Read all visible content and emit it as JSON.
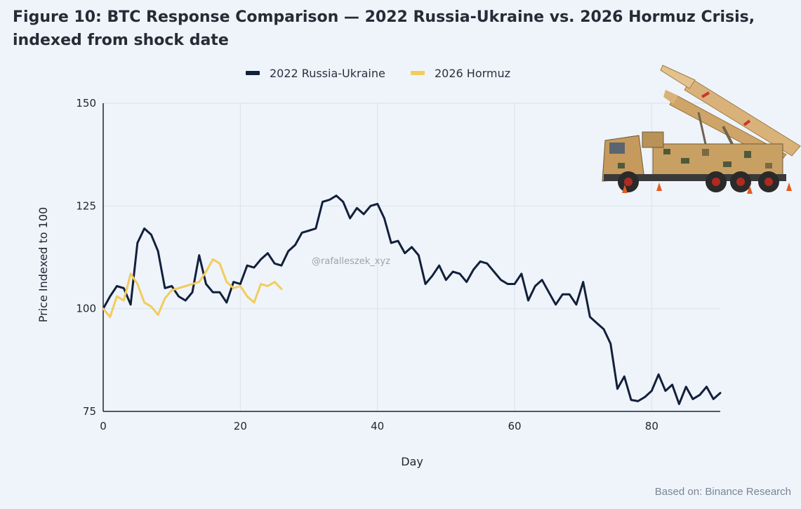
{
  "title_line1": "Figure 10: BTC Response Comparison — 2022 Russia-Ukraine vs. 2026 Hormuz Crisis,",
  "title_line2": "indexed from shock date",
  "watermark": "@rafalleszek_xyz",
  "source": "Based on: Binance Research",
  "illustration_icon": "missile-launcher-truck-icon",
  "chart_data": {
    "type": "line",
    "xlabel": "Day",
    "ylabel": "Price Indexed to 100",
    "xlim": [
      0,
      90
    ],
    "ylim": [
      75,
      150
    ],
    "xticks": [
      0,
      20,
      40,
      60,
      80
    ],
    "yticks": [
      75,
      100,
      125,
      150
    ],
    "grid": true,
    "legend_position": "top-center",
    "series": [
      {
        "name": "2022 Russia-Ukraine",
        "color": "#13203b",
        "x": [
          0,
          1,
          2,
          3,
          4,
          5,
          6,
          7,
          8,
          9,
          10,
          11,
          12,
          13,
          14,
          15,
          16,
          17,
          18,
          19,
          20,
          21,
          22,
          23,
          24,
          25,
          26,
          27,
          28,
          29,
          30,
          31,
          32,
          33,
          34,
          35,
          36,
          37,
          38,
          39,
          40,
          41,
          42,
          43,
          44,
          45,
          46,
          47,
          48,
          49,
          50,
          51,
          52,
          53,
          54,
          55,
          56,
          57,
          58,
          59,
          60,
          61,
          62,
          63,
          64,
          65,
          66,
          67,
          68,
          69,
          70,
          71,
          72,
          73,
          74,
          75,
          76,
          77,
          78,
          79,
          80,
          81,
          82,
          83,
          84,
          85,
          86,
          87,
          88,
          89,
          90
        ],
        "y": [
          100,
          103,
          105.5,
          105,
          101,
          116,
          119.5,
          118,
          114,
          105,
          105.5,
          103,
          102,
          104,
          113,
          106,
          104,
          104,
          101.5,
          106.5,
          106,
          110.5,
          110,
          112,
          113.5,
          111,
          110.5,
          114,
          115.5,
          118.5,
          119,
          119.5,
          126,
          126.5,
          127.5,
          126,
          122,
          124.5,
          123,
          125,
          125.5,
          122,
          116,
          116.5,
          113.5,
          115,
          113,
          106,
          108,
          110.5,
          107,
          109,
          108.5,
          106.5,
          109.5,
          111.5,
          111,
          109,
          107,
          106,
          106,
          108.5,
          102,
          105.5,
          107,
          104,
          101,
          103.5,
          103.5,
          101,
          106.5,
          98,
          96.5,
          95,
          91.5,
          80.5,
          83.5,
          77.8,
          77.5,
          78.5,
          80,
          84,
          80,
          81.5,
          76.8,
          81,
          78,
          79,
          81,
          78,
          79.5
        ]
      },
      {
        "name": "2026 Hormuz",
        "color": "#f2cc5c",
        "x": [
          0,
          1,
          2,
          3,
          4,
          5,
          6,
          7,
          8,
          9,
          10,
          11,
          12,
          13,
          14,
          15,
          16,
          17,
          18,
          19,
          20,
          21,
          22,
          23,
          24,
          25,
          26
        ],
        "y": [
          100,
          98,
          103,
          102,
          108.5,
          106,
          101.5,
          100.5,
          98.5,
          102.5,
          104.5,
          105,
          105.5,
          106,
          106.5,
          109,
          112,
          111,
          106.5,
          105,
          105.5,
          103,
          101.5,
          106,
          105.5,
          106.5,
          104.8
        ]
      }
    ]
  }
}
